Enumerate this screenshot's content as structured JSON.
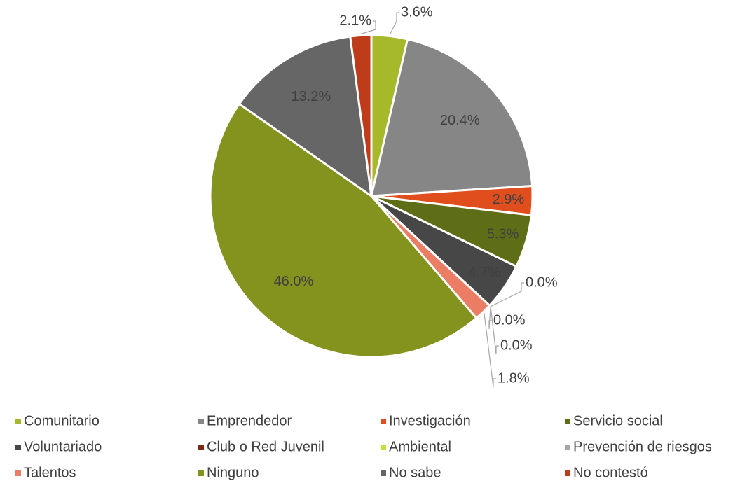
{
  "chart_data": {
    "type": "pie",
    "categories": [
      "Comunitario",
      "Emprendedor",
      "Investigación",
      "Servicio social",
      "Voluntariado",
      "Club o Red Juvenil",
      "Ambiental",
      "Prevención de riesgos",
      "Talentos",
      "Ninguno",
      "No sabe",
      "No contestó"
    ],
    "values": [
      3.6,
      20.4,
      2.9,
      5.3,
      4.7,
      0.0,
      0.0,
      0.0,
      1.8,
      46.0,
      13.2,
      2.1
    ],
    "value_labels": [
      "3.6%",
      "20.4%",
      "2.9%",
      "5.3%",
      "4.7%",
      "0.0%",
      "0.0%",
      "0.0%",
      "1.8%",
      "46.0%",
      "13.2%",
      "2.1%"
    ],
    "colors": [
      "#a5b92a",
      "#868686",
      "#e04e1e",
      "#5e6e16",
      "#474747",
      "#7b2b10",
      "#c3e03a",
      "#a6a6a6",
      "#ea7d63",
      "#84921e",
      "#666666",
      "#bf3c1a"
    ],
    "legend": "bottom"
  }
}
